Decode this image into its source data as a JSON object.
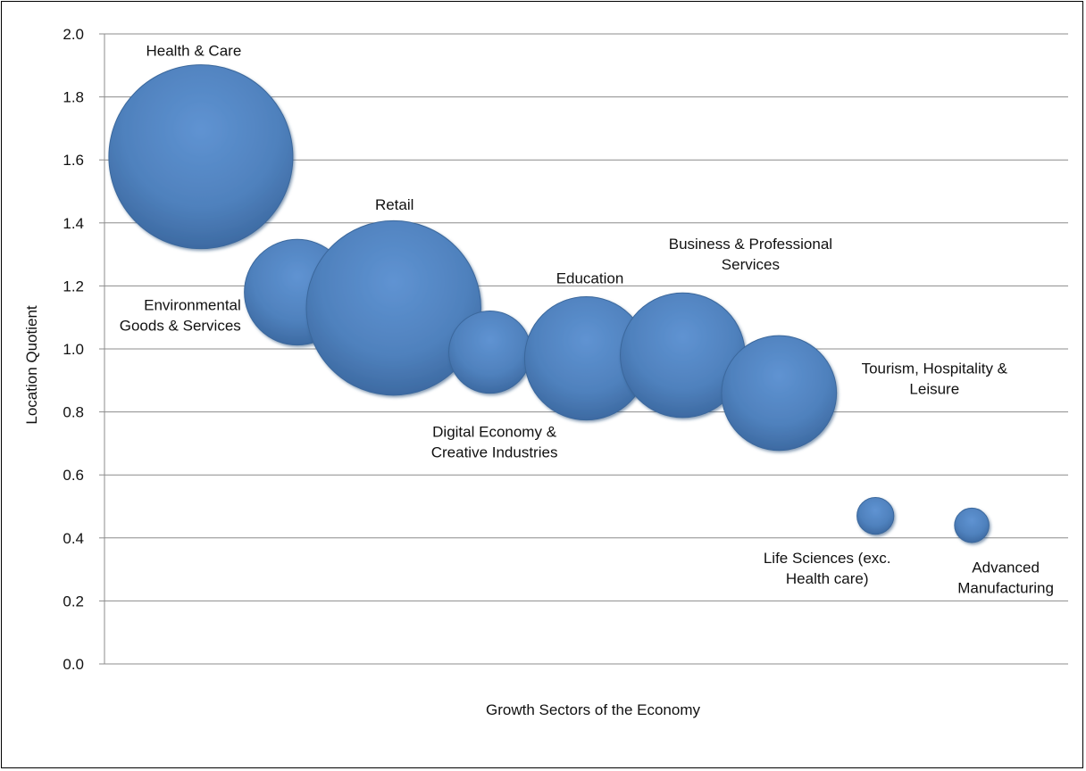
{
  "chart_data": {
    "type": "scatter",
    "title": "",
    "xlabel": "Growth Sectors of the Economy",
    "ylabel": "Location Quotient",
    "ylim": [
      0.0,
      2.0
    ],
    "yticks": [
      "0.0",
      "0.2",
      "0.4",
      "0.6",
      "0.8",
      "1.0",
      "1.2",
      "1.4",
      "1.6",
      "1.8",
      "2.0"
    ],
    "grid": true,
    "legend": "none",
    "bubble_color": "#4f81bd",
    "series": [
      {
        "name": "",
        "points": [
          {
            "label": "Health & Care",
            "x": 1,
            "y": 1.61,
            "size": 100
          },
          {
            "label": "Environmental Goods & Services",
            "x": 2,
            "y": 1.18,
            "size": 33
          },
          {
            "label": "Retail",
            "x": 3,
            "y": 1.13,
            "size": 90
          },
          {
            "label": "Digital Economy & Creative Industries",
            "x": 4,
            "y": 0.99,
            "size": 20
          },
          {
            "label": "Education",
            "x": 5,
            "y": 0.97,
            "size": 45
          },
          {
            "label": "Business & Professional Services",
            "x": 6,
            "y": 0.98,
            "size": 46
          },
          {
            "label": "Tourism, Hospitality & Leisure",
            "x": 7,
            "y": 0.86,
            "size": 39
          },
          {
            "label": "Life Sciences (exc. Health care)",
            "x": 8,
            "y": 0.47,
            "size": 4
          },
          {
            "label": "Advanced Manufacturing",
            "x": 9,
            "y": 0.44,
            "size": 3.5
          }
        ]
      }
    ]
  }
}
